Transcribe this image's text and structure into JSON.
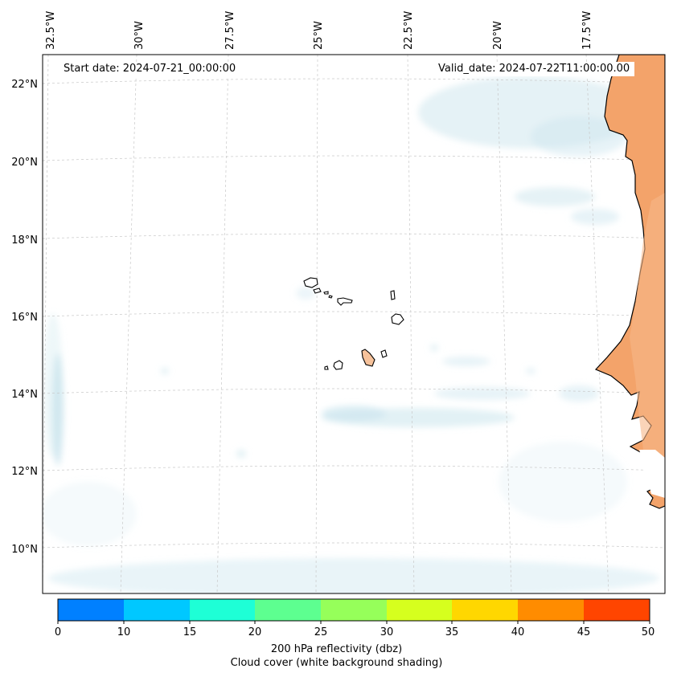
{
  "map": {
    "projection": "Lambert conformal",
    "lon_labels": [
      "32.5°W",
      "30°W",
      "27.5°W",
      "25°W",
      "22.5°W",
      "20°W",
      "17.5°W"
    ],
    "lat_labels": [
      "22°N",
      "20°N",
      "18°N",
      "16°N",
      "14°N",
      "12°N",
      "10°N"
    ],
    "start_date": "Start date: 2024-07-21_00:00:00",
    "valid_date": "Valid_date: 2024-07-22T11:00:00.00",
    "land_color": "#f3a36a",
    "cloud_color": "#cfe7ef",
    "coastline_color": "#000000"
  },
  "colorbar": {
    "ticks": [
      "0",
      "10",
      "15",
      "20",
      "25",
      "30",
      "35",
      "40",
      "45",
      "50"
    ],
    "colors": [
      "#0080ff",
      "#00c8ff",
      "#1effd6",
      "#5dff90",
      "#96ff5a",
      "#d6ff1e",
      "#ffd700",
      "#ff8c00",
      "#ff4500"
    ],
    "label_line1": "200 hPa reflectivity (dbz)",
    "label_line2": "Cloud cover (white background shading)"
  }
}
